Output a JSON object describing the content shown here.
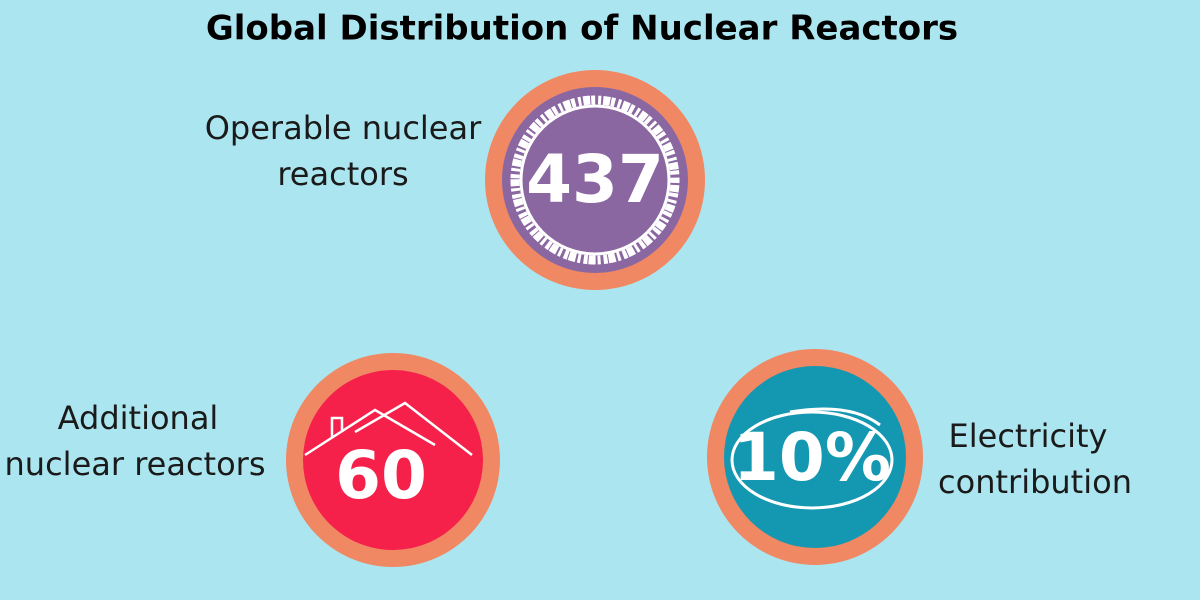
{
  "title": "Global Distribution of Nuclear Reactors",
  "items": [
    {
      "value": "437",
      "label": [
        "Operable nuclear",
        "reactors"
      ]
    },
    {
      "value": "60",
      "label": [
        "Additional",
        "nuclear reactors"
      ]
    },
    {
      "value": "10%",
      "label": [
        "Electricity",
        "contribution"
      ]
    }
  ]
}
